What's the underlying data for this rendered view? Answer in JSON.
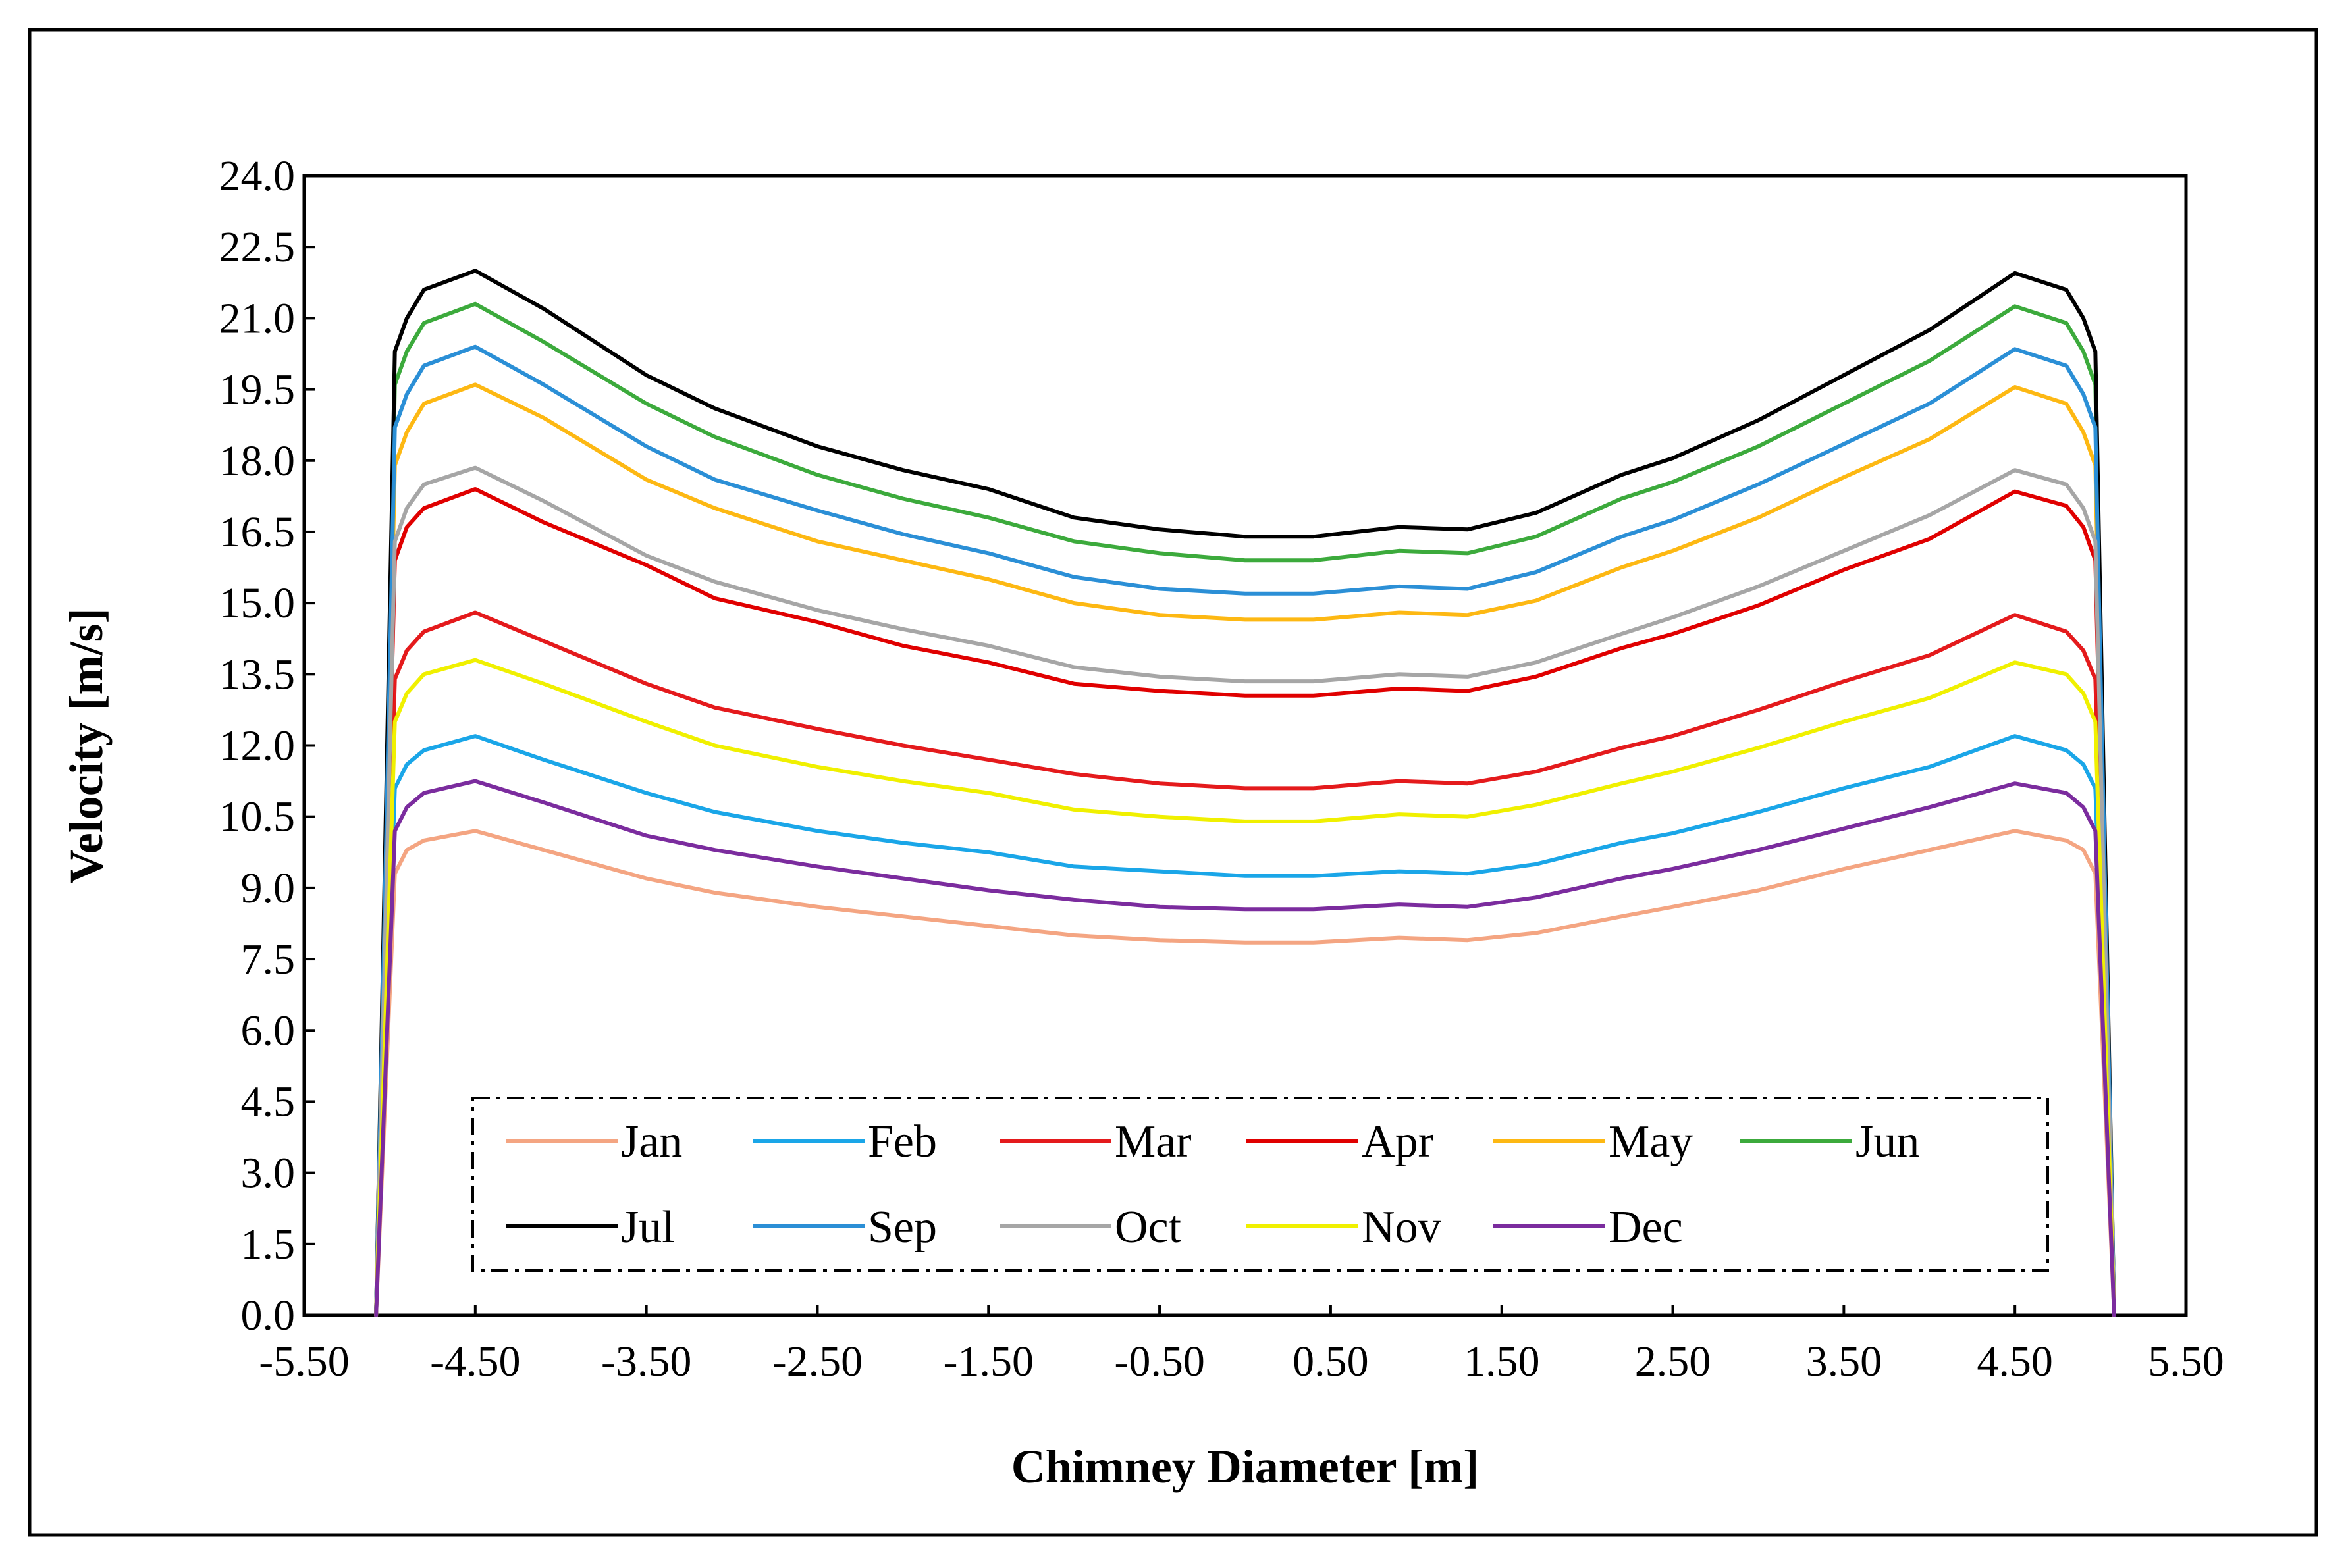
{
  "chart_data": {
    "type": "line",
    "title": "",
    "xlabel": "Chimney Diameter  [m]",
    "ylabel": "Velocity  [m/s]",
    "xlim": [
      -5.5,
      5.5
    ],
    "ylim": [
      0.0,
      24.0
    ],
    "xticks": [
      "-5.50",
      "-4.50",
      "-3.50",
      "-2.50",
      "-1.50",
      "-0.50",
      "0.50",
      "1.50",
      "2.50",
      "3.50",
      "4.50",
      "5.50"
    ],
    "yticks": [
      "0.0",
      "1.5",
      "3.0",
      "4.5",
      "6.0",
      "7.5",
      "9.0",
      "10.5",
      "12.0",
      "13.5",
      "15.0",
      "16.5",
      "18.0",
      "19.5",
      "21.0",
      "22.5",
      "24.0"
    ],
    "grid": false,
    "legend_position": "bottom",
    "x": [
      -5.08,
      -4.97,
      -4.9,
      -4.8,
      -4.5,
      -4.1,
      -3.5,
      -3.1,
      -2.5,
      -2.0,
      -1.5,
      -1.0,
      -0.5,
      0.0,
      0.4,
      0.9,
      1.3,
      1.7,
      2.2,
      2.5,
      3.0,
      3.5,
      4.0,
      4.5,
      4.8,
      4.9,
      4.97,
      5.08
    ],
    "series": [
      {
        "name": "Jan",
        "color": "#F4A582",
        "values": [
          0,
          9.3,
          9.8,
          10.0,
          10.2,
          9.8,
          9.2,
          8.9,
          8.6,
          8.4,
          8.2,
          8.0,
          7.9,
          7.85,
          7.85,
          7.95,
          7.9,
          8.05,
          8.4,
          8.6,
          8.95,
          9.4,
          9.8,
          10.2,
          10.0,
          9.8,
          9.3,
          0
        ]
      },
      {
        "name": "Feb",
        "color": "#1AA6E8",
        "values": [
          0,
          11.1,
          11.6,
          11.9,
          12.2,
          11.7,
          11.0,
          10.6,
          10.2,
          9.95,
          9.75,
          9.45,
          9.35,
          9.25,
          9.25,
          9.35,
          9.3,
          9.5,
          9.95,
          10.15,
          10.6,
          11.1,
          11.55,
          12.2,
          11.9,
          11.6,
          11.1,
          0
        ]
      },
      {
        "name": "Mar",
        "color": "#E41A1C",
        "values": [
          0,
          13.4,
          14.0,
          14.4,
          14.8,
          14.2,
          13.3,
          12.8,
          12.35,
          12.0,
          11.7,
          11.4,
          11.2,
          11.1,
          11.1,
          11.25,
          11.2,
          11.45,
          11.95,
          12.2,
          12.75,
          13.35,
          13.9,
          14.75,
          14.4,
          14.0,
          13.4,
          0
        ]
      },
      {
        "name": "Apr",
        "color": "#E00000",
        "values": [
          0,
          15.9,
          16.6,
          17.0,
          17.4,
          16.7,
          15.8,
          15.1,
          14.6,
          14.1,
          13.75,
          13.3,
          13.15,
          13.05,
          13.05,
          13.2,
          13.15,
          13.45,
          14.05,
          14.35,
          14.95,
          15.7,
          16.35,
          17.35,
          17.05,
          16.6,
          15.9,
          0
        ]
      },
      {
        "name": "May",
        "color": "#FDB813",
        "values": [
          0,
          17.9,
          18.6,
          19.2,
          19.6,
          18.9,
          17.6,
          17.0,
          16.3,
          15.9,
          15.5,
          15.0,
          14.75,
          14.65,
          14.65,
          14.8,
          14.75,
          15.05,
          15.75,
          16.1,
          16.8,
          17.65,
          18.45,
          19.55,
          19.2,
          18.6,
          17.9,
          0
        ]
      },
      {
        "name": "Jun",
        "color": "#3CAA3C",
        "values": [
          0,
          19.6,
          20.3,
          20.9,
          21.3,
          20.5,
          19.2,
          18.5,
          17.7,
          17.2,
          16.8,
          16.3,
          16.05,
          15.9,
          15.9,
          16.1,
          16.05,
          16.4,
          17.2,
          17.55,
          18.3,
          19.2,
          20.1,
          21.25,
          20.9,
          20.3,
          19.6,
          0
        ]
      },
      {
        "name": "Jul",
        "color": "#000000",
        "values": [
          0,
          20.3,
          21.0,
          21.6,
          22.0,
          21.2,
          19.8,
          19.1,
          18.3,
          17.8,
          17.4,
          16.8,
          16.55,
          16.4,
          16.4,
          16.6,
          16.55,
          16.9,
          17.7,
          18.05,
          18.85,
          19.8,
          20.75,
          21.95,
          21.6,
          21.0,
          20.3,
          0
        ]
      },
      {
        "name": "Sep",
        "color": "#2B8FD6",
        "values": [
          0,
          18.7,
          19.4,
          20.0,
          20.4,
          19.6,
          18.3,
          17.6,
          16.95,
          16.45,
          16.05,
          15.55,
          15.3,
          15.2,
          15.2,
          15.35,
          15.3,
          15.65,
          16.4,
          16.75,
          17.5,
          18.35,
          19.2,
          20.35,
          20.0,
          19.4,
          18.7,
          0
        ]
      },
      {
        "name": "Oct",
        "color": "#A6A6A6",
        "values": [
          0,
          16.3,
          17.0,
          17.5,
          17.85,
          17.15,
          16.0,
          15.45,
          14.85,
          14.45,
          14.1,
          13.65,
          13.45,
          13.35,
          13.35,
          13.5,
          13.45,
          13.75,
          14.35,
          14.7,
          15.35,
          16.1,
          16.85,
          17.8,
          17.5,
          17.0,
          16.3,
          0
        ]
      },
      {
        "name": "Nov",
        "color": "#F0F000",
        "values": [
          0,
          12.5,
          13.1,
          13.5,
          13.8,
          13.3,
          12.5,
          12.0,
          11.55,
          11.25,
          11.0,
          10.65,
          10.5,
          10.4,
          10.4,
          10.55,
          10.5,
          10.75,
          11.2,
          11.45,
          11.95,
          12.5,
          13.0,
          13.75,
          13.5,
          13.1,
          12.5,
          0
        ]
      },
      {
        "name": "Dec",
        "color": "#7B2C9E",
        "values": [
          0,
          10.2,
          10.7,
          11.0,
          11.25,
          10.8,
          10.1,
          9.8,
          9.45,
          9.2,
          8.95,
          8.75,
          8.6,
          8.55,
          8.55,
          8.65,
          8.6,
          8.8,
          9.2,
          9.4,
          9.8,
          10.25,
          10.7,
          11.2,
          11.0,
          10.7,
          10.2,
          0
        ]
      }
    ]
  }
}
